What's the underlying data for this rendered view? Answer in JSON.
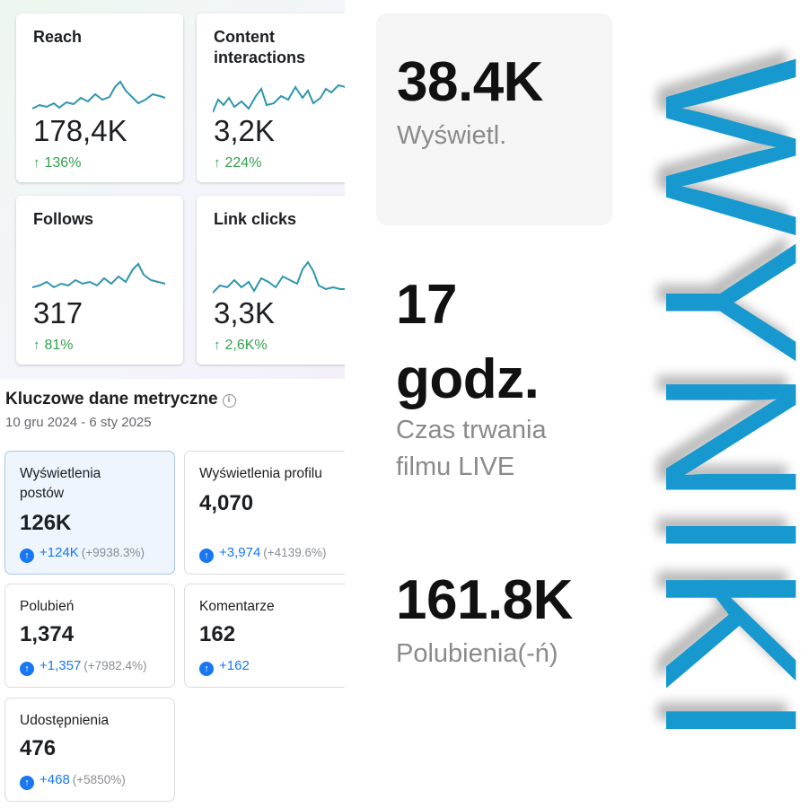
{
  "analytics": {
    "cards": [
      {
        "title": "Reach",
        "value": "178,4K",
        "change": "136%"
      },
      {
        "title": "Content interactions",
        "value": "3,2K",
        "change": "224%"
      },
      {
        "title": "Follows",
        "value": "317",
        "change": "81%"
      },
      {
        "title": "Link clicks",
        "value": "3,3K",
        "change": "2,6K%"
      }
    ],
    "arrow": "↑"
  },
  "key_metrics": {
    "title": "Kluczowe dane metryczne",
    "info": "i",
    "date_range": "10 gru 2024 - 6 sty 2025",
    "cards": [
      {
        "label": "Wyświetlenia postów",
        "value": "126K",
        "change": "+124K",
        "pct": "(+9938.3%)"
      },
      {
        "label": "Wyświetlenia profilu",
        "value": "4,070",
        "change": "+3,974",
        "pct": "(+4139.6%)"
      },
      {
        "label": "Polubień",
        "value": "1,374",
        "change": "+1,357",
        "pct": "(+7982.4%)"
      },
      {
        "label": "Komentarze",
        "value": "162",
        "change": "+162",
        "pct": ""
      },
      {
        "label": "Udostępnienia",
        "value": "476",
        "change": "+468",
        "pct": "(+5850%)"
      }
    ],
    "up_icon": "↑"
  },
  "tiktok_stats": {
    "views_value": "38.4K",
    "views_label": "Wyświetl.",
    "live_value_1": "17",
    "live_value_2": "godz.",
    "live_label_1": "Czas trwania",
    "live_label_2": "filmu LIVE",
    "likes_value": "161.8K",
    "likes_label": "Polubienia(-ń)"
  },
  "banner": {
    "word": "WYNIKI",
    "color": "#1798cf"
  },
  "colors": {
    "positive_green": "#31a24c",
    "facebook_blue": "#1877f2"
  }
}
